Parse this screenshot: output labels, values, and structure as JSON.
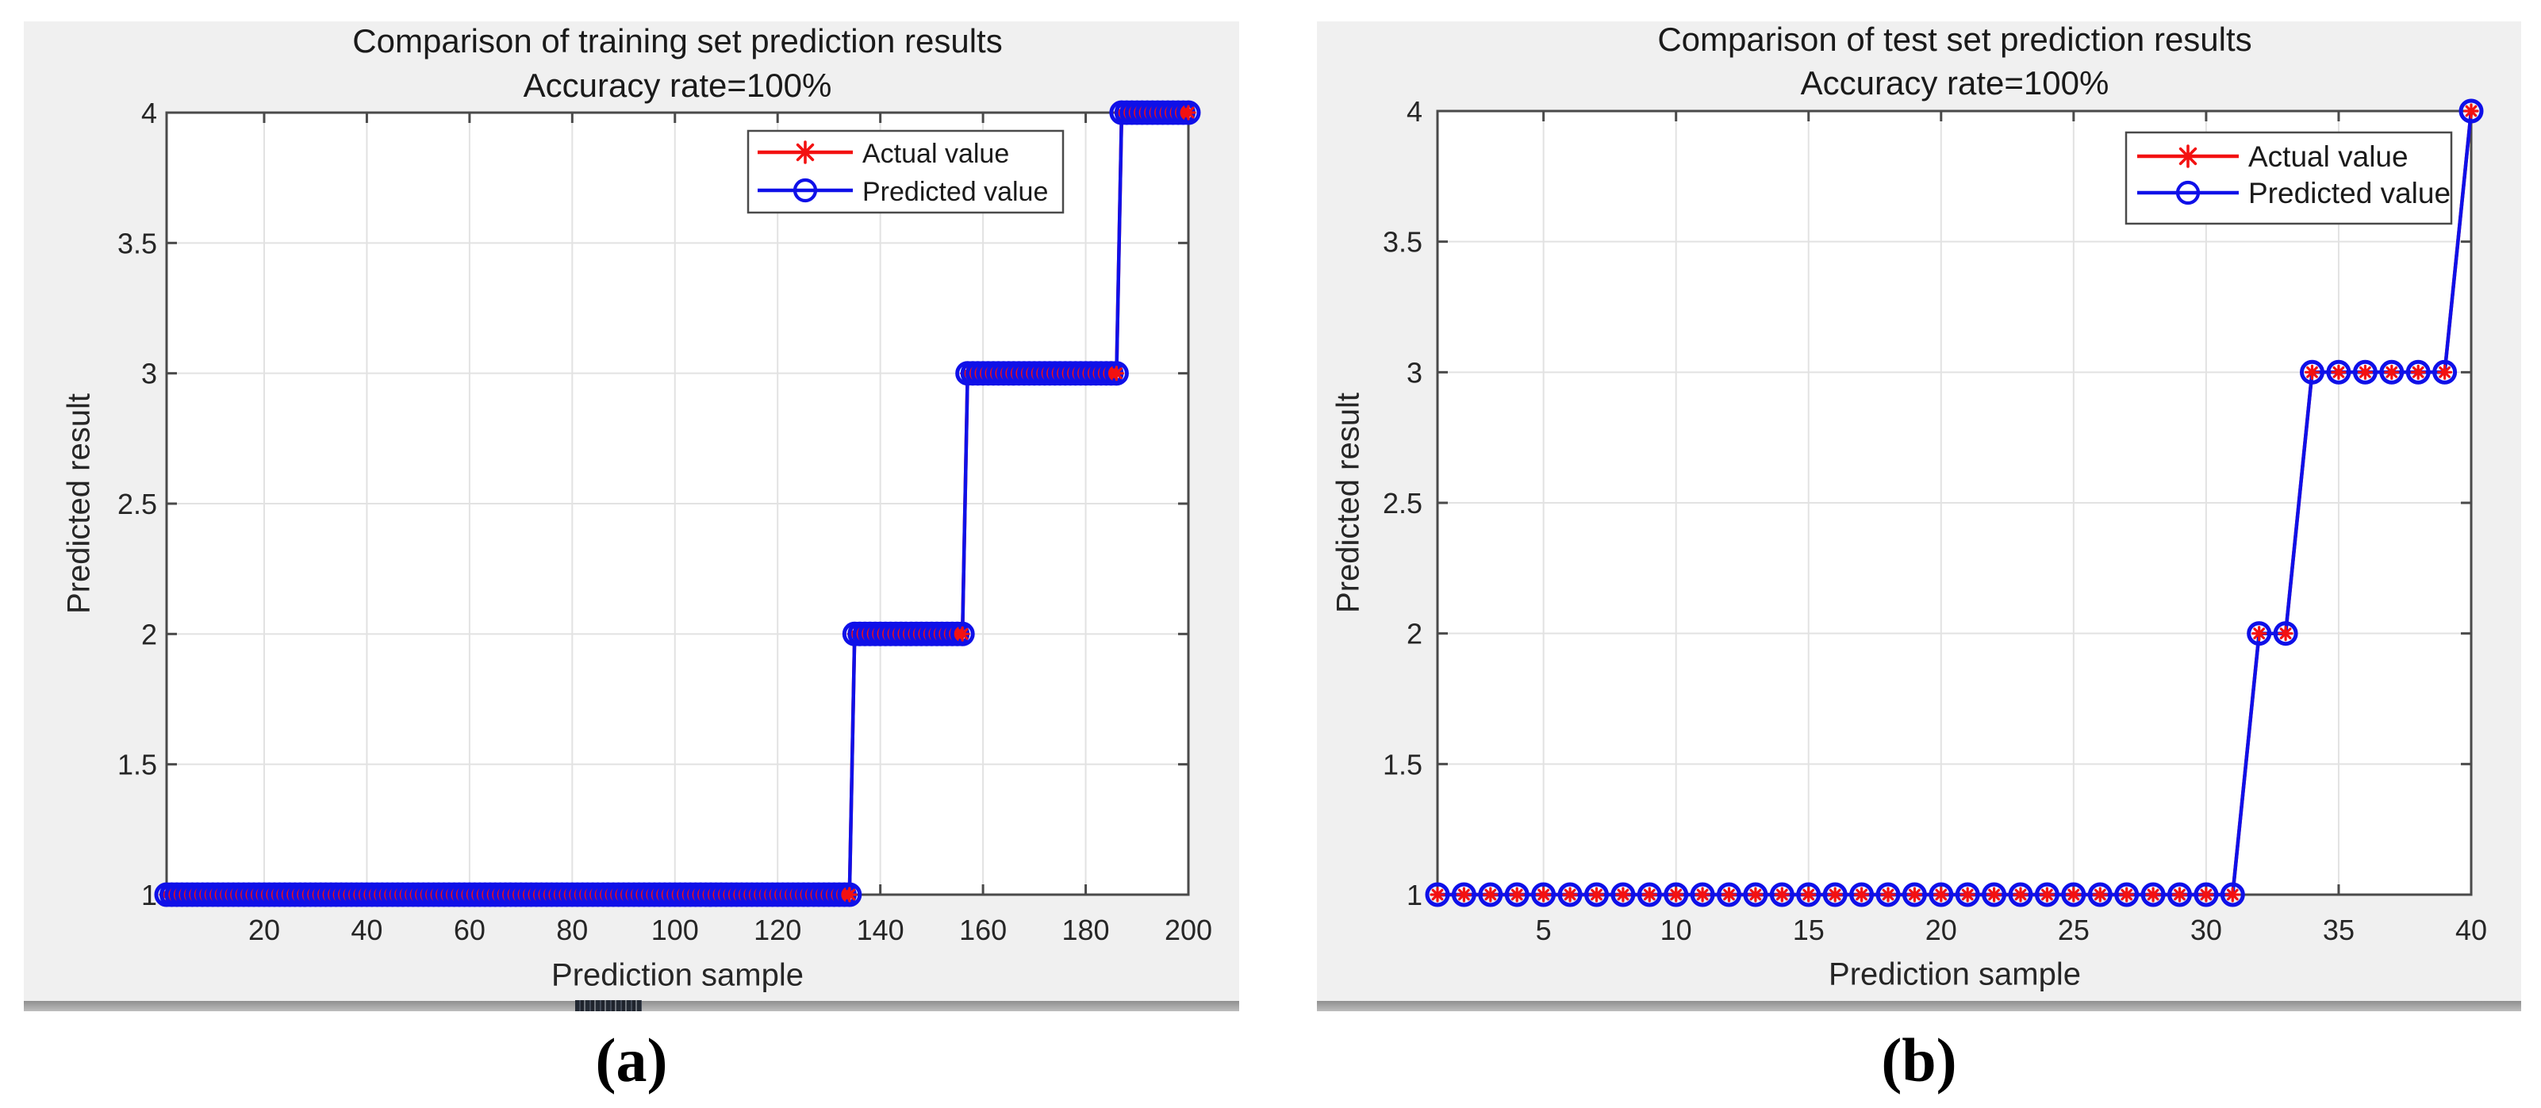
{
  "colors": {
    "figure_background": "#f0f0f0",
    "plot_background": "#ffffff",
    "grid": "#e2e2e2",
    "axis": "#4a4a4a",
    "tick_label": "#262626",
    "title_text": "#1a1a1a",
    "actual_red": "#f31111",
    "predicted_blue": "#0f10e8",
    "legend_border": "#4a4a4a",
    "figure_bottom_edge": "#8f8f8f"
  },
  "chart_data": [
    {
      "id": "training-set-plot",
      "type": "line",
      "title": "Comparison of training set prediction results",
      "subtitle": "Accuracy rate=100%",
      "xlabel": "Prediction sample",
      "ylabel": "Predicted result",
      "caption": "(a)",
      "xlim": [
        1,
        200
      ],
      "ylim": [
        1,
        4
      ],
      "x_ticks": [
        20,
        40,
        60,
        80,
        100,
        120,
        140,
        160,
        180,
        200
      ],
      "y_ticks": [
        1,
        1.5,
        2,
        2.5,
        3,
        3.5,
        4
      ],
      "grid": true,
      "legend": {
        "position": "upper-right-inside",
        "entries": [
          {
            "label": "Actual value",
            "marker": "asterisk",
            "color": "#f31111"
          },
          {
            "label": "Predicted value",
            "marker": "circle",
            "color": "#0f10e8"
          }
        ]
      },
      "series_note": "Actual and Predicted series coincide exactly (100% accuracy)",
      "segments": [
        {
          "value": 1,
          "from": 1,
          "to": 134
        },
        {
          "value": 2,
          "from": 135,
          "to": 156
        },
        {
          "value": 3,
          "from": 157,
          "to": 186
        },
        {
          "value": 4,
          "from": 187,
          "to": 200
        }
      ]
    },
    {
      "id": "test-set-plot",
      "type": "line",
      "title": "Comparison of test set prediction results",
      "subtitle": "Accuracy rate=100%",
      "xlabel": "Prediction sample",
      "ylabel": "Predicted result",
      "caption": "(b)",
      "xlim": [
        1,
        40
      ],
      "ylim": [
        1,
        4
      ],
      "x_ticks": [
        5,
        10,
        15,
        20,
        25,
        30,
        35,
        40
      ],
      "y_ticks": [
        1,
        1.5,
        2,
        2.5,
        3,
        3.5,
        4
      ],
      "grid": true,
      "legend": {
        "position": "upper-right-inside",
        "entries": [
          {
            "label": "Actual value",
            "marker": "asterisk",
            "color": "#f31111"
          },
          {
            "label": "Predicted value",
            "marker": "circle",
            "color": "#0f10e8"
          }
        ]
      },
      "series_note": "Actual and Predicted series coincide exactly (100% accuracy)",
      "segments": [
        {
          "value": 1,
          "from": 1,
          "to": 31
        },
        {
          "value": 2,
          "from": 32,
          "to": 33
        },
        {
          "value": 3,
          "from": 34,
          "to": 39
        },
        {
          "value": 4,
          "from": 40,
          "to": 40
        }
      ]
    }
  ]
}
